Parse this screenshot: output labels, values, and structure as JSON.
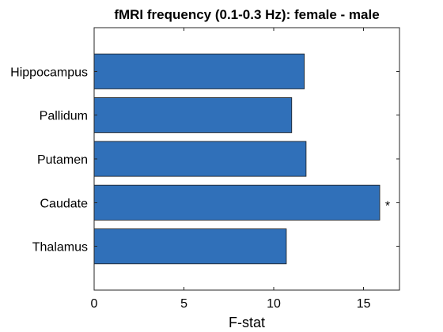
{
  "chart_data": {
    "type": "bar",
    "orientation": "horizontal",
    "title": "fMRI frequency (0.1-0.3 Hz): female - male",
    "xlabel": "F-stat",
    "ylabel": "",
    "categories": [
      "Thalamus",
      "Caudate",
      "Putamen",
      "Pallidum",
      "Hippocampus"
    ],
    "values": [
      10.7,
      15.9,
      11.8,
      11.0,
      11.7
    ],
    "annotations": [
      "",
      "*",
      "",
      "",
      ""
    ],
    "xlim": [
      0,
      17
    ],
    "xticks": [
      0,
      5,
      10,
      15
    ],
    "xtick_labels": [
      "0",
      "5",
      "10",
      "15"
    ],
    "bar_color": "#3070B9",
    "grid": false,
    "legend": "none"
  }
}
